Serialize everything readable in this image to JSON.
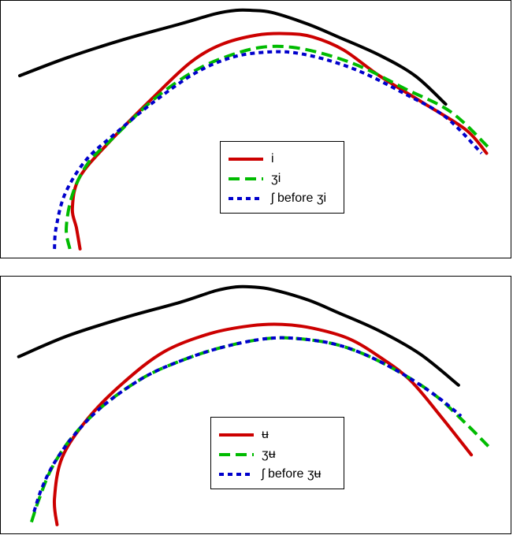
{
  "chart_data": [
    {
      "type": "line",
      "title": "",
      "xlabel": "",
      "ylabel": "",
      "grid": false,
      "legend_position": "center-bottom",
      "series": [
        {
          "key": "outline",
          "color": "#000000",
          "style": "solid",
          "points": [
            [
              0.037,
              0.71
            ],
            [
              0.13,
              0.78
            ],
            [
              0.24,
              0.85
            ],
            [
              0.35,
              0.91
            ],
            [
              0.42,
              0.95
            ],
            [
              0.46,
              0.963
            ],
            [
              0.49,
              0.963
            ],
            [
              0.53,
              0.955
            ],
            [
              0.6,
              0.91
            ],
            [
              0.66,
              0.86
            ],
            [
              0.74,
              0.79
            ],
            [
              0.81,
              0.71
            ],
            [
              0.87,
              0.6
            ]
          ]
        },
        {
          "key": "i",
          "name": "i",
          "color": "#cc0000",
          "style": "solid",
          "points": [
            [
              0.155,
              0.04
            ],
            [
              0.148,
              0.12
            ],
            [
              0.14,
              0.2
            ],
            [
              0.155,
              0.32
            ],
            [
              0.22,
              0.47
            ],
            [
              0.3,
              0.63
            ],
            [
              0.37,
              0.76
            ],
            [
              0.43,
              0.83
            ],
            [
              0.5,
              0.867
            ],
            [
              0.56,
              0.873
            ],
            [
              0.61,
              0.86
            ],
            [
              0.67,
              0.81
            ],
            [
              0.74,
              0.71
            ],
            [
              0.83,
              0.6
            ],
            [
              0.91,
              0.5
            ],
            [
              0.95,
              0.41
            ]
          ]
        },
        {
          "key": "zi",
          "name": "ʒi",
          "color": "#00bb00",
          "style": "dashed",
          "points": [
            [
              0.135,
              0.04
            ],
            [
              0.128,
              0.12
            ],
            [
              0.14,
              0.25
            ],
            [
              0.17,
              0.37
            ],
            [
              0.22,
              0.47
            ],
            [
              0.3,
              0.62
            ],
            [
              0.38,
              0.73
            ],
            [
              0.45,
              0.79
            ],
            [
              0.51,
              0.82
            ],
            [
              0.57,
              0.82
            ],
            [
              0.64,
              0.79
            ],
            [
              0.71,
              0.74
            ],
            [
              0.79,
              0.66
            ],
            [
              0.88,
              0.57
            ],
            [
              0.955,
              0.43
            ]
          ]
        },
        {
          "key": "sh_before_zi",
          "name": "ʃ before ʒi",
          "color": "#0000cc",
          "style": "dotted",
          "points": [
            [
              0.105,
              0.04
            ],
            [
              0.108,
              0.12
            ],
            [
              0.125,
              0.25
            ],
            [
              0.165,
              0.38
            ],
            [
              0.22,
              0.48
            ],
            [
              0.3,
              0.61
            ],
            [
              0.38,
              0.72
            ],
            [
              0.45,
              0.78
            ],
            [
              0.51,
              0.8
            ],
            [
              0.57,
              0.8
            ],
            [
              0.64,
              0.77
            ],
            [
              0.71,
              0.72
            ],
            [
              0.79,
              0.64
            ],
            [
              0.87,
              0.55
            ],
            [
              0.94,
              0.41
            ]
          ]
        }
      ]
    },
    {
      "type": "line",
      "title": "",
      "xlabel": "",
      "ylabel": "",
      "grid": false,
      "legend_position": "center-bottom",
      "series": [
        {
          "key": "outline",
          "color": "#000000",
          "style": "solid",
          "points": [
            [
              0.035,
              0.69
            ],
            [
              0.13,
              0.77
            ],
            [
              0.24,
              0.84
            ],
            [
              0.35,
              0.9
            ],
            [
              0.42,
              0.945
            ],
            [
              0.46,
              0.96
            ],
            [
              0.49,
              0.96
            ],
            [
              0.53,
              0.95
            ],
            [
              0.6,
              0.91
            ],
            [
              0.66,
              0.86
            ],
            [
              0.74,
              0.79
            ],
            [
              0.82,
              0.7
            ],
            [
              0.895,
              0.58
            ]
          ]
        },
        {
          "key": "u",
          "name": "ʉ",
          "color": "#cc0000",
          "style": "solid",
          "points": [
            [
              0.11,
              0.04
            ],
            [
              0.105,
              0.14
            ],
            [
              0.12,
              0.3
            ],
            [
              0.17,
              0.45
            ],
            [
              0.24,
              0.59
            ],
            [
              0.32,
              0.71
            ],
            [
              0.41,
              0.78
            ],
            [
              0.49,
              0.81
            ],
            [
              0.55,
              0.815
            ],
            [
              0.61,
              0.8
            ],
            [
              0.68,
              0.76
            ],
            [
              0.74,
              0.69
            ],
            [
              0.8,
              0.6
            ],
            [
              0.86,
              0.46
            ],
            [
              0.92,
              0.31
            ]
          ]
        },
        {
          "key": "zu",
          "name": "ʒʉ",
          "color": "#00bb00",
          "style": "dashed",
          "points": [
            [
              0.06,
              0.05
            ],
            [
              0.075,
              0.14
            ],
            [
              0.1,
              0.26
            ],
            [
              0.14,
              0.38
            ],
            [
              0.2,
              0.5
            ],
            [
              0.28,
              0.61
            ],
            [
              0.36,
              0.68
            ],
            [
              0.44,
              0.73
            ],
            [
              0.52,
              0.76
            ],
            [
              0.58,
              0.76
            ],
            [
              0.65,
              0.74
            ],
            [
              0.71,
              0.7
            ],
            [
              0.78,
              0.63
            ],
            [
              0.85,
              0.54
            ],
            [
              0.91,
              0.43
            ],
            [
              0.96,
              0.33
            ]
          ]
        },
        {
          "key": "sh_before_zu",
          "name": "ʃ before ʒʉ",
          "color": "#0000cc",
          "style": "dotted",
          "points": [
            [
              0.065,
              0.09
            ],
            [
              0.08,
              0.18
            ],
            [
              0.105,
              0.28
            ],
            [
              0.145,
              0.39
            ],
            [
              0.2,
              0.5
            ],
            [
              0.28,
              0.61
            ],
            [
              0.36,
              0.68
            ],
            [
              0.44,
              0.73
            ],
            [
              0.52,
              0.76
            ],
            [
              0.58,
              0.76
            ],
            [
              0.65,
              0.74
            ],
            [
              0.71,
              0.7
            ],
            [
              0.78,
              0.63
            ],
            [
              0.85,
              0.54
            ],
            [
              0.9,
              0.46
            ]
          ]
        }
      ]
    }
  ]
}
